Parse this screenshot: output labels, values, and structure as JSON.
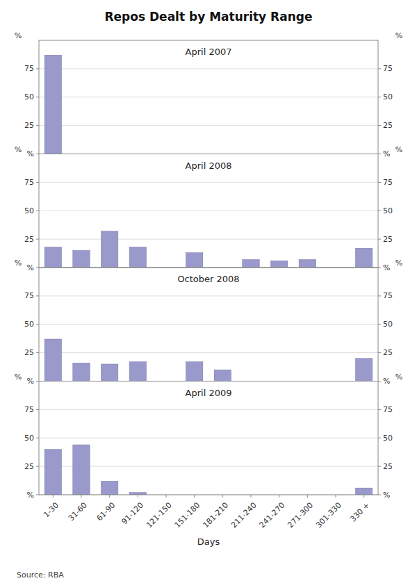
{
  "chart_data": [
    {
      "type": "bar",
      "title": "Repos Dealt by Maturity Range",
      "subtitle": "April 2007",
      "categories": [
        "1-30",
        "31-60",
        "61-90",
        "91-120",
        "121-150",
        "151-180",
        "181-210",
        "211-240",
        "241-270",
        "271-300",
        "301-330",
        "330 +"
      ],
      "values": [
        87,
        0,
        0,
        0,
        0,
        0,
        0,
        0,
        0,
        0,
        0,
        0
      ],
      "color": "#9999cc",
      "ylim": [
        0,
        100
      ],
      "yticks": [
        {
          "value": 0,
          "label": "%"
        },
        25,
        50,
        75
      ],
      "y2lim": [
        0,
        100
      ],
      "y2ticks": [
        {
          "value": 0,
          "label": "%"
        },
        25,
        50,
        75
      ],
      "ylabel": "%",
      "y2label": "%",
      "grid": true,
      "tick_labels": "y"
    },
    {
      "type": "bar",
      "subtitle": "April 2008",
      "categories": [
        "1-30",
        "31-60",
        "61-90",
        "91-120",
        "121-150",
        "151-180",
        "181-210",
        "211-240",
        "241-270",
        "271-300",
        "301-330",
        "330 +"
      ],
      "values": [
        18,
        15,
        32,
        18,
        0,
        13,
        0,
        7,
        6,
        7,
        0,
        17
      ],
      "color": "#9999cc",
      "ylim": [
        0,
        100
      ],
      "yticks": [
        {
          "value": 0,
          "label": "%"
        },
        25,
        50,
        75
      ],
      "y2lim": [
        0,
        100
      ],
      "y2ticks": [
        {
          "value": 0,
          "label": "%"
        },
        25,
        50,
        75
      ],
      "ylabel": "%",
      "y2label": "%",
      "grid": true,
      "tick_labels": "y"
    },
    {
      "type": "bar",
      "subtitle": "October 2008",
      "categories": [
        "1-30",
        "31-60",
        "61-90",
        "91-120",
        "121-150",
        "151-180",
        "181-210",
        "211-240",
        "241-270",
        "271-300",
        "301-330",
        "330 +"
      ],
      "values": [
        37,
        16,
        15,
        17,
        0,
        17,
        10,
        0,
        0,
        0,
        0,
        20
      ],
      "color": "#9999cc",
      "ylim": [
        0,
        100
      ],
      "yticks": [
        {
          "value": 0,
          "label": "%"
        },
        25,
        50,
        75
      ],
      "y2lim": [
        0,
        100
      ],
      "y2ticks": [
        {
          "value": 0,
          "label": "%"
        },
        25,
        50,
        75
      ],
      "ylabel": "%",
      "y2label": "%",
      "grid": true,
      "tick_labels": "y"
    },
    {
      "type": "bar",
      "subtitle": "April 2009",
      "categories": [
        "1-30",
        "31-60",
        "61-90",
        "91-120",
        "121-150",
        "151-180",
        "181-210",
        "211-240",
        "241-270",
        "271-300",
        "301-330",
        "330 +"
      ],
      "values": [
        40,
        44,
        12,
        2,
        0,
        0,
        0,
        0,
        0,
        0,
        0,
        6
      ],
      "color": "#9999cc",
      "ylim": [
        0,
        100
      ],
      "yticks": [
        {
          "value": 0,
          "label": "%"
        },
        25,
        50,
        75
      ],
      "y2lim": [
        0,
        100
      ],
      "y2ticks": [
        {
          "value": 0,
          "label": "%"
        },
        25,
        50,
        75
      ],
      "ylabel": "%",
      "y2label": "%",
      "xlabel": "Days",
      "annotations": [
        "Source: RBA"
      ],
      "grid": true
    }
  ]
}
